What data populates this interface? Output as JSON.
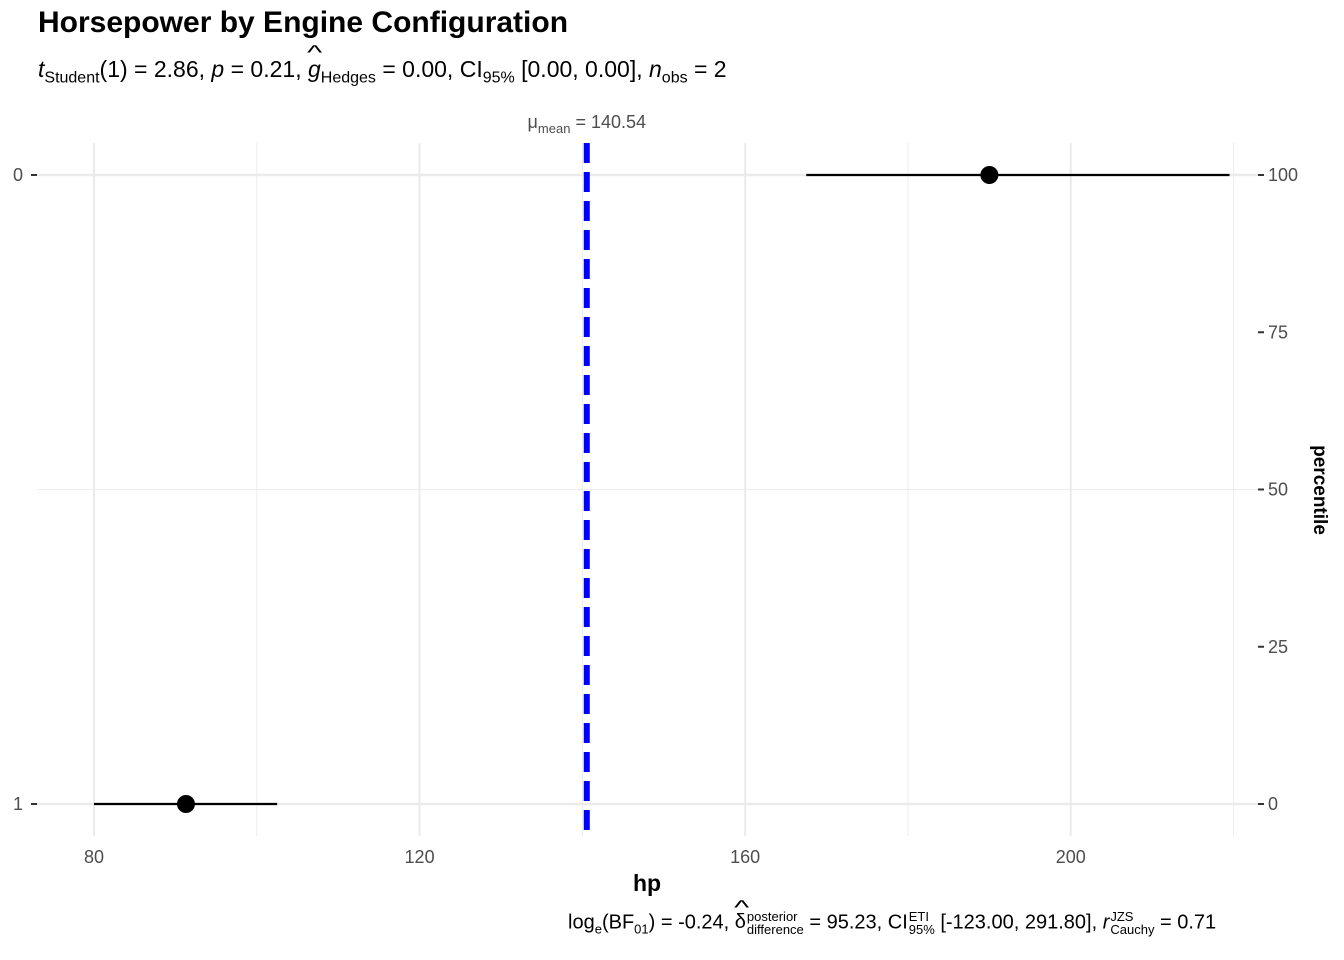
{
  "chart_data": {
    "type": "scatter",
    "title": "Horsepower by Engine Configuration",
    "subtitle": {
      "t_sym": "t",
      "t_sub": "Student",
      "t_val": "(1) = 2.86, ",
      "p_sym": "p",
      "p_val": " = 0.21, ",
      "g_sym": "g",
      "g_sub": "Hedges",
      "g_val": " = 0.00, ",
      "ci_sym": "CI",
      "ci_sub": "95%",
      "ci_val": " [0.00, 0.00], ",
      "n_sym": "n",
      "n_sub": "obs",
      "n_val": " = 2"
    },
    "caption": {
      "log": "log",
      "log_sub": "e",
      "bf": "(BF",
      "bf_sub": "01",
      "bf_val": ") = -0.24, ",
      "delta": "δ",
      "delta_sup": "posterior",
      "delta_sub": "difference",
      "delta_val": " = 95.23, ",
      "ci": "CI",
      "ci_sup": "ETI",
      "ci_sub": "95%",
      "ci_val": " [-123.00, 291.80], ",
      "r": "r",
      "r_sup": "JZS",
      "r_sub": "Cauchy",
      "r_val": " = 0.71"
    },
    "xlabel": "hp",
    "y2label": "percentile",
    "xlim": [
      73,
      223
    ],
    "x_ticks": [
      80,
      120,
      160,
      200
    ],
    "y_categories": [
      "0",
      "1"
    ],
    "y2_ticks": [
      0,
      25,
      50,
      75,
      100
    ],
    "points": [
      {
        "category": "0",
        "x": 190,
        "xmin": 167.5,
        "xmax": 219.5
      },
      {
        "category": "1",
        "x": 91.3,
        "xmin": 80,
        "xmax": 102.5
      }
    ],
    "mean_line": {
      "x": 140.54,
      "label_sym": "μ",
      "label_sub": "mean",
      "label_val": " = 140.54",
      "color": "#0000ff"
    },
    "grid": true
  }
}
